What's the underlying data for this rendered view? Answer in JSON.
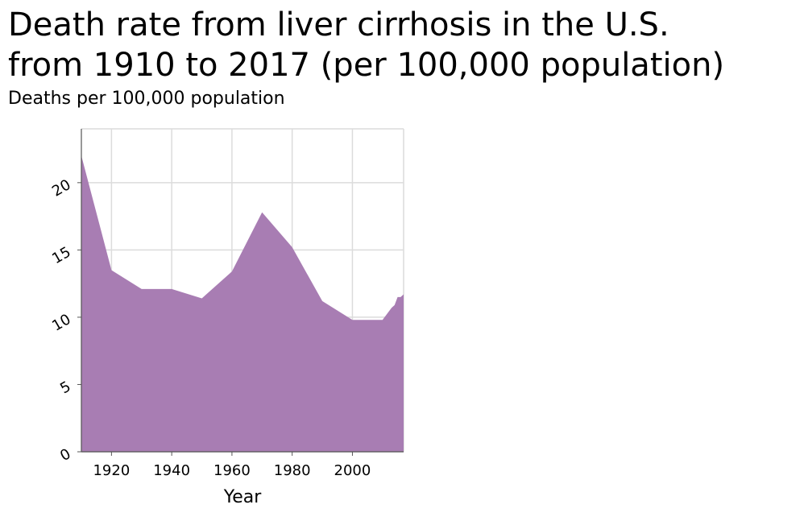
{
  "chart_data": {
    "type": "area",
    "title": "Death rate from liver cirrhosis in the U.S.\nfrom 1910 to 2017 (per 100,000 population)",
    "subtitle": "Deaths per 100,000 population",
    "xlabel": "Year",
    "ylabel": "",
    "xlim": [
      1910,
      2017
    ],
    "ylim": [
      0,
      24
    ],
    "xticks": [
      1920,
      1940,
      1960,
      1980,
      2000
    ],
    "yticks": [
      0,
      5,
      10,
      15,
      20
    ],
    "grid": true,
    "fill_color": "#a87db3",
    "x": [
      1910,
      1920,
      1930,
      1940,
      1950,
      1960,
      1970,
      1980,
      1990,
      2000,
      2010,
      2012,
      2013,
      2014,
      2015,
      2016,
      2017
    ],
    "values": [
      22.0,
      13.5,
      12.1,
      12.1,
      11.4,
      13.4,
      17.8,
      15.2,
      11.2,
      9.8,
      9.8,
      10.4,
      10.7,
      10.9,
      11.5,
      11.5,
      11.7
    ]
  }
}
